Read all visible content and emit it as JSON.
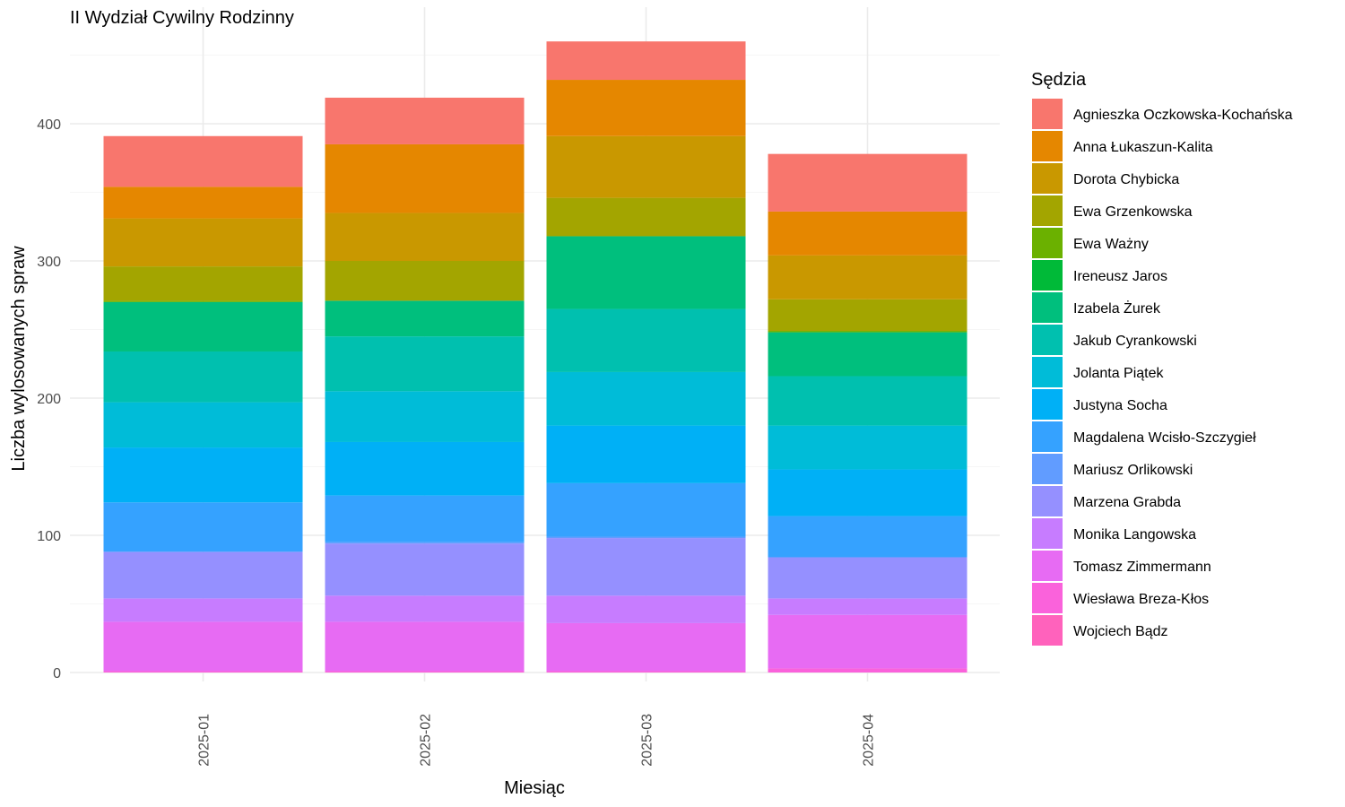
{
  "chart_data": {
    "type": "bar",
    "stacked": true,
    "title": "II Wydział Cywilny Rodzinny",
    "xlabel": "Miesiąc",
    "ylabel": "Liczba wylosowanych spraw",
    "ylim": [
      0,
      470
    ],
    "yticks": [
      0,
      100,
      200,
      300,
      400
    ],
    "grid": true,
    "legend_title": "Sędzia",
    "legend_position": "right",
    "categories": [
      "2025-01",
      "2025-02",
      "2025-03",
      "2025-04"
    ],
    "series": [
      {
        "name": "Agnieszka Oczkowska-Kochańska",
        "color": "#F8766D",
        "values": [
          37,
          34,
          28,
          42
        ]
      },
      {
        "name": "Anna Łukaszun-Kalita",
        "color": "#E58700",
        "values": [
          23,
          50,
          41,
          32
        ]
      },
      {
        "name": "Dorota Chybicka",
        "color": "#C99800",
        "values": [
          35,
          35,
          45,
          32
        ]
      },
      {
        "name": "Ewa Grzenkowska",
        "color": "#A3A500",
        "values": [
          25,
          29,
          28,
          23
        ]
      },
      {
        "name": "Ewa Ważny",
        "color": "#6BB100",
        "values": [
          1,
          0,
          0,
          1
        ]
      },
      {
        "name": "Ireneusz Jaros",
        "color": "#00BA38",
        "values": [
          0,
          0,
          0,
          0
        ]
      },
      {
        "name": "Izabela Żurek",
        "color": "#00BF7D",
        "values": [
          36,
          26,
          53,
          32
        ]
      },
      {
        "name": "Jakub Cyrankowski",
        "color": "#00C0AF",
        "values": [
          37,
          40,
          46,
          36
        ]
      },
      {
        "name": "Jolanta Piątek",
        "color": "#00BCD8",
        "values": [
          33,
          37,
          39,
          32
        ]
      },
      {
        "name": "Justyna Socha",
        "color": "#00B0F6",
        "values": [
          40,
          39,
          42,
          34
        ]
      },
      {
        "name": "Magdalena Wcisło-Szczygieł",
        "color": "#35A2FF",
        "values": [
          36,
          34,
          39,
          30
        ]
      },
      {
        "name": "Mariusz Orlikowski",
        "color": "#619CFF",
        "values": [
          0,
          1,
          1,
          0
        ]
      },
      {
        "name": "Marzena Grabda",
        "color": "#9590FF",
        "values": [
          34,
          38,
          42,
          30
        ]
      },
      {
        "name": "Monika Langowska",
        "color": "#C77CFF",
        "values": [
          17,
          19,
          20,
          12
        ]
      },
      {
        "name": "Tomasz Zimmermann",
        "color": "#E76BF3",
        "values": [
          36,
          36,
          35,
          39
        ]
      },
      {
        "name": "Wiesława Breza-Kłos",
        "color": "#FA62DB",
        "values": [
          1,
          1,
          1,
          3
        ]
      },
      {
        "name": "Wojciech Bądz",
        "color": "#FF62BC",
        "values": [
          0,
          0,
          0,
          0
        ]
      }
    ]
  }
}
